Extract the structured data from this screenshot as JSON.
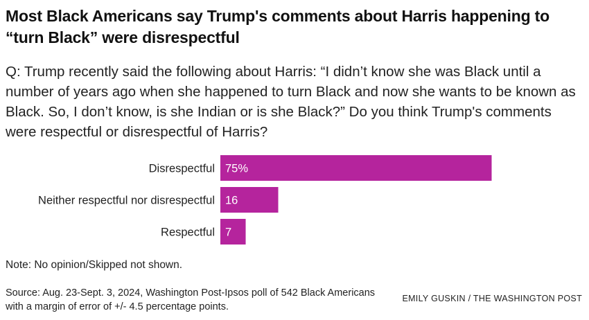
{
  "title": "Most Black Americans say Trump's comments about Harris happening to “turn Black” were disrespectful",
  "question": "Q: Trump recently said the following about Harris: “I didn’t know she was Black until a number of years ago when she happened to turn Black and now she wants to be known as Black. So, I don’t know, is she Indian or is she Black?” Do you think Trump's comments were respectful or disrespectful of Harris?",
  "note": "Note: No opinion/Skipped not shown.",
  "source": "Source: Aug. 23-Sept. 3, 2024, Washington Post-Ipsos poll of 542 Black Americans with a margin of error of +/- 4.5 percentage points.",
  "credit": "EMILY GUSKIN / THE WASHINGTON POST",
  "colors": {
    "bar": "#b5249d",
    "bar_label": "#ffffff",
    "category_label": "#222222"
  },
  "chart_data": {
    "type": "bar",
    "orientation": "horizontal",
    "categories": [
      "Disrespectful",
      "Neither respectful nor disrespectful",
      "Respectful"
    ],
    "values": [
      75,
      16,
      7
    ],
    "value_labels": [
      "75%",
      "16",
      "7"
    ],
    "unit": "%",
    "xlim": [
      0,
      100
    ],
    "grid": false,
    "legend": "none"
  }
}
